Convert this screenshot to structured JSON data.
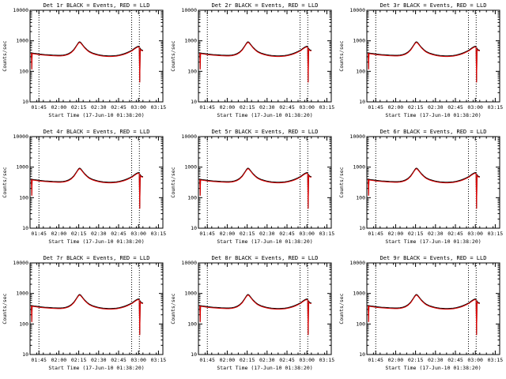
{
  "page": {
    "background": "#ffffff"
  },
  "chart_data": {
    "type": "line",
    "grid_layout": "3x3",
    "y_scale": "log",
    "ylabel": "Counts/sec",
    "xlabel": "Start Time (17-Jun-10 01:38:20)",
    "ylim": [
      10,
      10000
    ],
    "y_ticks": [
      10,
      100,
      1000,
      10000
    ],
    "y_tick_labels": [
      "10",
      "100",
      "1000",
      "10000"
    ],
    "xlim_minutes": [
      0,
      100
    ],
    "x_tick_minutes": [
      6.67,
      21.67,
      36.67,
      51.67,
      66.67,
      81.67,
      96.67
    ],
    "x_tick_labels": [
      "01:45",
      "02:00",
      "02:15",
      "02:30",
      "02:45",
      "03:00",
      "03:15"
    ],
    "x_minor_step_minutes": 5,
    "vlines_minutes": [
      6.7,
      76.5,
      82.3
    ],
    "colors": {
      "events": "#000000",
      "lld": "#e00000",
      "axis": "#000000"
    },
    "legend": {
      "black": "Events",
      "red": "LLD"
    },
    "x_minutes": [
      1.0,
      1.3,
      1.6,
      3,
      5,
      7,
      9,
      11,
      13,
      15,
      17,
      19,
      21,
      23,
      25,
      27,
      29,
      31,
      33,
      34,
      35,
      36,
      36.7,
      37.3,
      38,
      39,
      40,
      41,
      42,
      43,
      44,
      45,
      47,
      49,
      51,
      53,
      55,
      57,
      59,
      61,
      63,
      65,
      67,
      69,
      71,
      73,
      75,
      77,
      78,
      79,
      80,
      81,
      81.7,
      82.2,
      82.6,
      83,
      83.5,
      84,
      85
    ],
    "series_black": [
      420,
      120,
      400,
      390,
      380,
      370,
      362,
      355,
      350,
      345,
      340,
      338,
      335,
      335,
      340,
      355,
      380,
      430,
      520,
      600,
      700,
      820,
      900,
      930,
      900,
      800,
      700,
      620,
      560,
      510,
      470,
      440,
      400,
      375,
      355,
      340,
      330,
      325,
      322,
      322,
      325,
      332,
      342,
      358,
      380,
      410,
      450,
      500,
      540,
      580,
      620,
      650,
      660,
      640,
      45,
      560,
      520,
      500,
      490
    ],
    "series_red": [
      399,
      114,
      380,
      371,
      361,
      352,
      344,
      337,
      333,
      328,
      323,
      321,
      318,
      318,
      323,
      337,
      361,
      409,
      494,
      570,
      665,
      779,
      855,
      884,
      855,
      760,
      665,
      589,
      532,
      485,
      447,
      418,
      380,
      356,
      337,
      323,
      314,
      309,
      306,
      306,
      309,
      315,
      325,
      340,
      361,
      390,
      428,
      475,
      513,
      551,
      589,
      618,
      627,
      608,
      43,
      532,
      494,
      475,
      466
    ],
    "panels": [
      {
        "title": "Det 1r BLACK = Events, RED = LLD"
      },
      {
        "title": "Det 2r BLACK = Events, RED = LLD"
      },
      {
        "title": "Det 3r BLACK = Events, RED = LLD"
      },
      {
        "title": "Det 4r BLACK = Events, RED = LLD"
      },
      {
        "title": "Det 5r BLACK = Events, RED = LLD"
      },
      {
        "title": "Det 6r BLACK = Events, RED = LLD"
      },
      {
        "title": "Det 7r BLACK = Events, RED = LLD"
      },
      {
        "title": "Det 8r BLACK = Events, RED = LLD"
      },
      {
        "title": "Det 9r BLACK = Events, RED = LLD"
      }
    ]
  }
}
